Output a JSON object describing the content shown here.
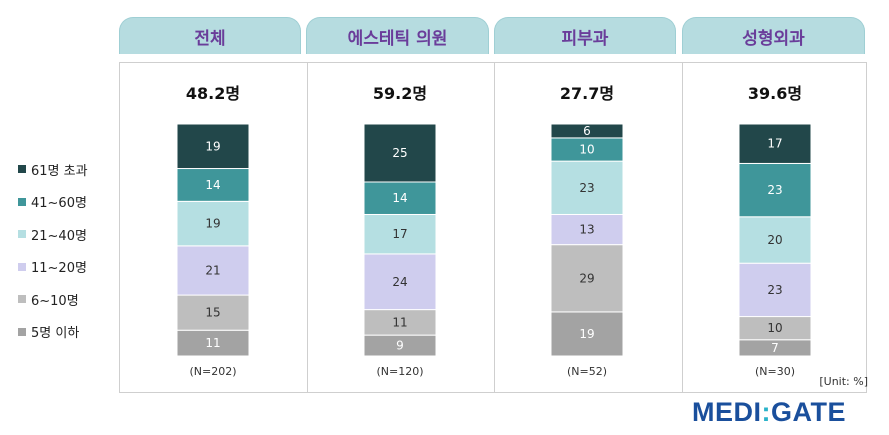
{
  "chart_data": {
    "type": "bar",
    "stacked": true,
    "unit": "[Unit: %]",
    "categories": [
      "전체",
      "에스테틱 의원",
      "피부과",
      "성형외과"
    ],
    "averages": [
      "48.2명",
      "59.2명",
      "27.7명",
      "39.6명"
    ],
    "n_labels": [
      "(N=202)",
      "(N=120)",
      "(N=52)",
      "(N=30)"
    ],
    "series": [
      {
        "name": "5명 이하",
        "color": "#a3a3a3",
        "values": [
          11,
          9,
          19,
          7
        ]
      },
      {
        "name": "6~10명",
        "color": "#bebebe",
        "values": [
          15,
          11,
          29,
          10
        ]
      },
      {
        "name": "11~20명",
        "color": "#cfcdee",
        "values": [
          21,
          24,
          13,
          23
        ]
      },
      {
        "name": "21~40명",
        "color": "#b5dfe2",
        "values": [
          19,
          17,
          23,
          20
        ]
      },
      {
        "name": "41~60명",
        "color": "#3f969a",
        "values": [
          14,
          14,
          10,
          23
        ]
      },
      {
        "name": "61명 초과",
        "color": "#22474a",
        "values": [
          19,
          25,
          6,
          17
        ]
      }
    ],
    "legend_position": "left",
    "grid": false
  },
  "logo": {
    "left": "MEDI",
    "mid": ":",
    "right": "GATE"
  }
}
